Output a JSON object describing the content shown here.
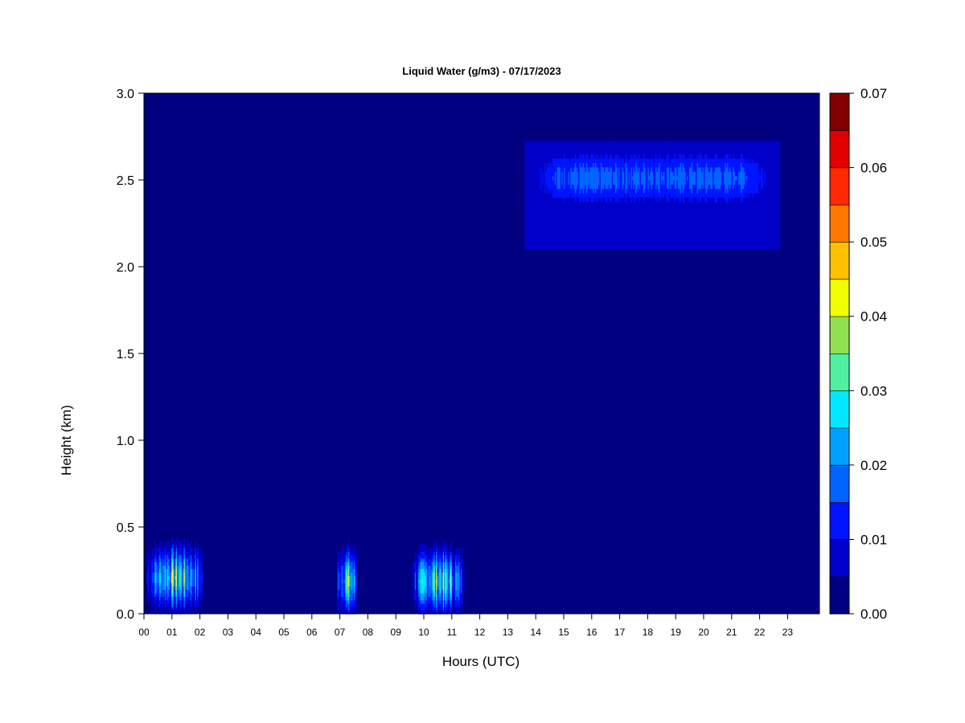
{
  "chart_data": {
    "type": "heatmap",
    "title": "Liquid Water (g/m3) - 07/17/2023",
    "xlabel": "Hours (UTC)",
    "ylabel": "Height (km)",
    "xlim": [
      0,
      24
    ],
    "ylim": [
      0,
      3
    ],
    "x_ticks": [
      "00",
      "01",
      "02",
      "03",
      "04",
      "05",
      "06",
      "07",
      "08",
      "09",
      "10",
      "11",
      "12",
      "13",
      "14",
      "15",
      "16",
      "17",
      "18",
      "19",
      "20",
      "21",
      "22",
      "23"
    ],
    "y_ticks": [
      "0.0",
      "0.5",
      "1.0",
      "1.5",
      "2.0",
      "2.5",
      "3.0"
    ],
    "colorbar": {
      "min": 0.0,
      "max": 0.07,
      "ticks": [
        "0.00",
        "0.01",
        "0.02",
        "0.03",
        "0.04",
        "0.05",
        "0.06",
        "0.07"
      ],
      "levels": [
        0.0,
        0.005,
        0.01,
        0.015,
        0.02,
        0.025,
        0.03,
        0.035,
        0.04,
        0.045,
        0.05,
        0.055,
        0.06,
        0.065,
        0.07
      ],
      "colors": [
        "#000080",
        "#0000c8",
        "#0014ff",
        "#0064ff",
        "#00a0ff",
        "#00e8ff",
        "#50f0a0",
        "#90e050",
        "#f0ff00",
        "#ffc000",
        "#ff7800",
        "#ff2800",
        "#e00000",
        "#800000"
      ]
    },
    "background_value": 0.0,
    "features": [
      {
        "name": "low cloud 00-02h",
        "x_range": [
          0.1,
          2.1
        ],
        "y_range": [
          0.0,
          0.8
        ],
        "peak_value": 0.045,
        "peak_height": 0.2
      },
      {
        "name": "low cloud 07h",
        "x_range": [
          6.9,
          7.6
        ],
        "y_range": [
          0.0,
          0.6
        ],
        "peak_value": 0.045,
        "peak_height": 0.18
      },
      {
        "name": "low cloud 10-11h",
        "x_range": [
          9.6,
          11.4
        ],
        "y_range": [
          0.0,
          0.75
        ],
        "peak_value": 0.045,
        "peak_height": 0.18
      },
      {
        "name": "mid layer 14-23h",
        "x_range": [
          13.6,
          22.7
        ],
        "y_range": [
          2.1,
          2.7
        ],
        "peak_value": 0.02,
        "peak_height": 2.5
      }
    ]
  }
}
